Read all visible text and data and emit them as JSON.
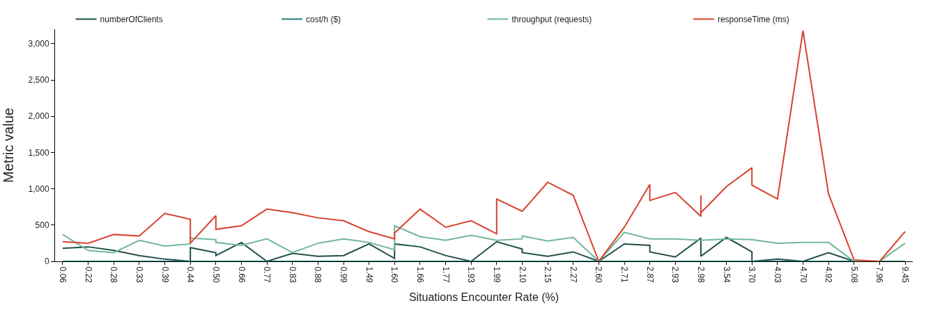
{
  "chart_data": {
    "type": "line",
    "xlabel": "Situations Encounter Rate (%)",
    "ylabel": "Metric value",
    "categories": [
      "0.06",
      "0.22",
      "0.28",
      "0.33",
      "0.39",
      "0.44",
      "0.50",
      "0.66",
      "0.77",
      "0.83",
      "0.88",
      "0.99",
      "1.49",
      "1.60",
      "1.66",
      "1.77",
      "1.93",
      "1.99",
      "2.10",
      "2.15",
      "2.27",
      "2.60",
      "2.71",
      "2.87",
      "2.93",
      "2.98",
      "3.54",
      "3.70",
      "4.03",
      "4.70",
      "4.92",
      "5.08",
      "7.96",
      "9.45"
    ],
    "series": [
      {
        "name": "numberOfClients",
        "color": "#1f4e4a",
        "x": [
          "0.06",
          "0.22",
          "0.28",
          "0.33",
          "0.39",
          "0.44",
          "0.44",
          "0.50",
          "0.50",
          "0.66",
          "0.77",
          "0.83",
          "0.88",
          "0.99",
          "1.49",
          "1.60",
          "1.60",
          "1.66",
          "1.77",
          "1.93",
          "1.99",
          "2.10",
          "2.10",
          "2.15",
          "2.27",
          "2.60",
          "2.71",
          "2.87",
          "2.87",
          "2.93",
          "2.98",
          "2.98",
          "3.54",
          "3.70",
          "3.70",
          "4.03",
          "4.70",
          "4.92",
          "5.08",
          "7.96",
          "9.45"
        ],
        "values": [
          180,
          200,
          150,
          80,
          30,
          0,
          190,
          120,
          80,
          260,
          0,
          110,
          70,
          80,
          240,
          40,
          240,
          200,
          80,
          0,
          270,
          170,
          120,
          70,
          130,
          0,
          240,
          220,
          130,
          60,
          320,
          70,
          330,
          130,
          0,
          30,
          0,
          120,
          0,
          0,
          0
        ]
      },
      {
        "name": "cost/h ($)",
        "color": "#1b7f74",
        "values": [
          0,
          0,
          0,
          0,
          0,
          0,
          0,
          0,
          0,
          0,
          0,
          0,
          0,
          0,
          0,
          0,
          0,
          0,
          0,
          0,
          0,
          0,
          0,
          0,
          0,
          0,
          0,
          0,
          0,
          0,
          0,
          0,
          0,
          0
        ]
      },
      {
        "name": "throughput (requests)",
        "color": "#6fb79a",
        "x": [
          "0.06",
          "0.22",
          "0.28",
          "0.33",
          "0.39",
          "0.44",
          "0.44",
          "0.50",
          "0.50",
          "0.66",
          "0.77",
          "0.83",
          "0.88",
          "0.99",
          "1.49",
          "1.60",
          "1.60",
          "1.66",
          "1.77",
          "1.93",
          "1.99",
          "2.10",
          "2.10",
          "2.15",
          "2.27",
          "2.60",
          "2.71",
          "2.87",
          "2.93",
          "2.98",
          "3.54",
          "3.70",
          "4.03",
          "4.70",
          "4.92",
          "5.08",
          "7.96",
          "9.45"
        ],
        "values": [
          370,
          150,
          120,
          290,
          210,
          240,
          320,
          300,
          260,
          220,
          310,
          120,
          250,
          310,
          260,
          160,
          490,
          340,
          290,
          360,
          290,
          310,
          350,
          280,
          330,
          0,
          400,
          310,
          310,
          290,
          310,
          300,
          250,
          260,
          260,
          0,
          0,
          250
        ]
      },
      {
        "name": "responseTime (ms)",
        "color": "#d9412f",
        "x": [
          "0.06",
          "0.22",
          "0.28",
          "0.33",
          "0.39",
          "0.44",
          "0.44",
          "0.50",
          "0.50",
          "0.66",
          "0.77",
          "0.83",
          "0.88",
          "0.99",
          "1.49",
          "1.60",
          "1.60",
          "1.66",
          "1.77",
          "1.93",
          "1.99",
          "1.99",
          "2.10",
          "2.15",
          "2.27",
          "2.60",
          "2.71",
          "2.87",
          "2.87",
          "2.93",
          "2.98",
          "2.98",
          "2.98",
          "3.54",
          "3.70",
          "3.70",
          "4.03",
          "4.70",
          "4.92",
          "5.08",
          "7.96",
          "9.45"
        ],
        "values": [
          270,
          250,
          370,
          350,
          660,
          580,
          250,
          630,
          440,
          490,
          720,
          670,
          600,
          560,
          410,
          310,
          390,
          720,
          470,
          560,
          380,
          860,
          690,
          1090,
          910,
          0,
          470,
          1060,
          840,
          950,
          620,
          910,
          670,
          1030,
          1290,
          1050,
          860,
          3180,
          930,
          20,
          0,
          410
        ]
      }
    ],
    "ylim": [
      0,
      3200
    ],
    "yticks": [
      0,
      500,
      {
        "value": 1000,
        "label": "1,000"
      },
      {
        "value": 1500,
        "label": "1,500"
      },
      {
        "value": 2000,
        "label": "2,000"
      },
      {
        "value": 2500,
        "label": "2,500"
      },
      {
        "value": 3000,
        "label": "3,000"
      }
    ],
    "legend": "top",
    "marker": "none",
    "line_style": "solid"
  }
}
